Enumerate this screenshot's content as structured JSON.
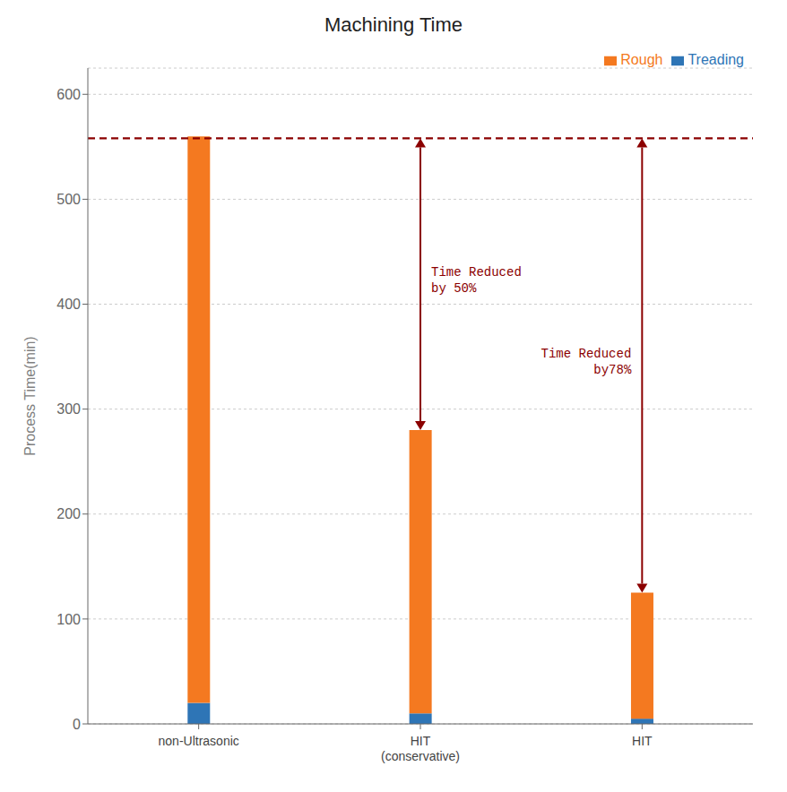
{
  "chart_data": {
    "type": "bar",
    "title": "Machining Time",
    "ylabel": "Process Time(min)",
    "categories": [
      "non-Ultrasonic",
      "HIT\n(conservative)",
      "HIT"
    ],
    "series": [
      {
        "name": "Treading",
        "color": "#2E75B6",
        "values": [
          20,
          10,
          5
        ]
      },
      {
        "name": "Rough",
        "color": "#F47920",
        "values": [
          540,
          270,
          120
        ]
      }
    ],
    "stacked": true,
    "ylim": [
      0,
      625
    ],
    "yticks": [
      0,
      100,
      200,
      300,
      400,
      500,
      600
    ],
    "grid": true,
    "legend": "upper right",
    "reference_line": {
      "y": 558,
      "color": "#8B0000",
      "line_style": "dashed"
    },
    "annotations": [
      {
        "text": "Time Reduced\nby78%",
        "category": "HIT",
        "color": "#8B0000"
      },
      {
        "text": "Time Reduced\nby 50%",
        "category": "HIT\n(conservative)",
        "color": "#8B0000"
      }
    ]
  }
}
